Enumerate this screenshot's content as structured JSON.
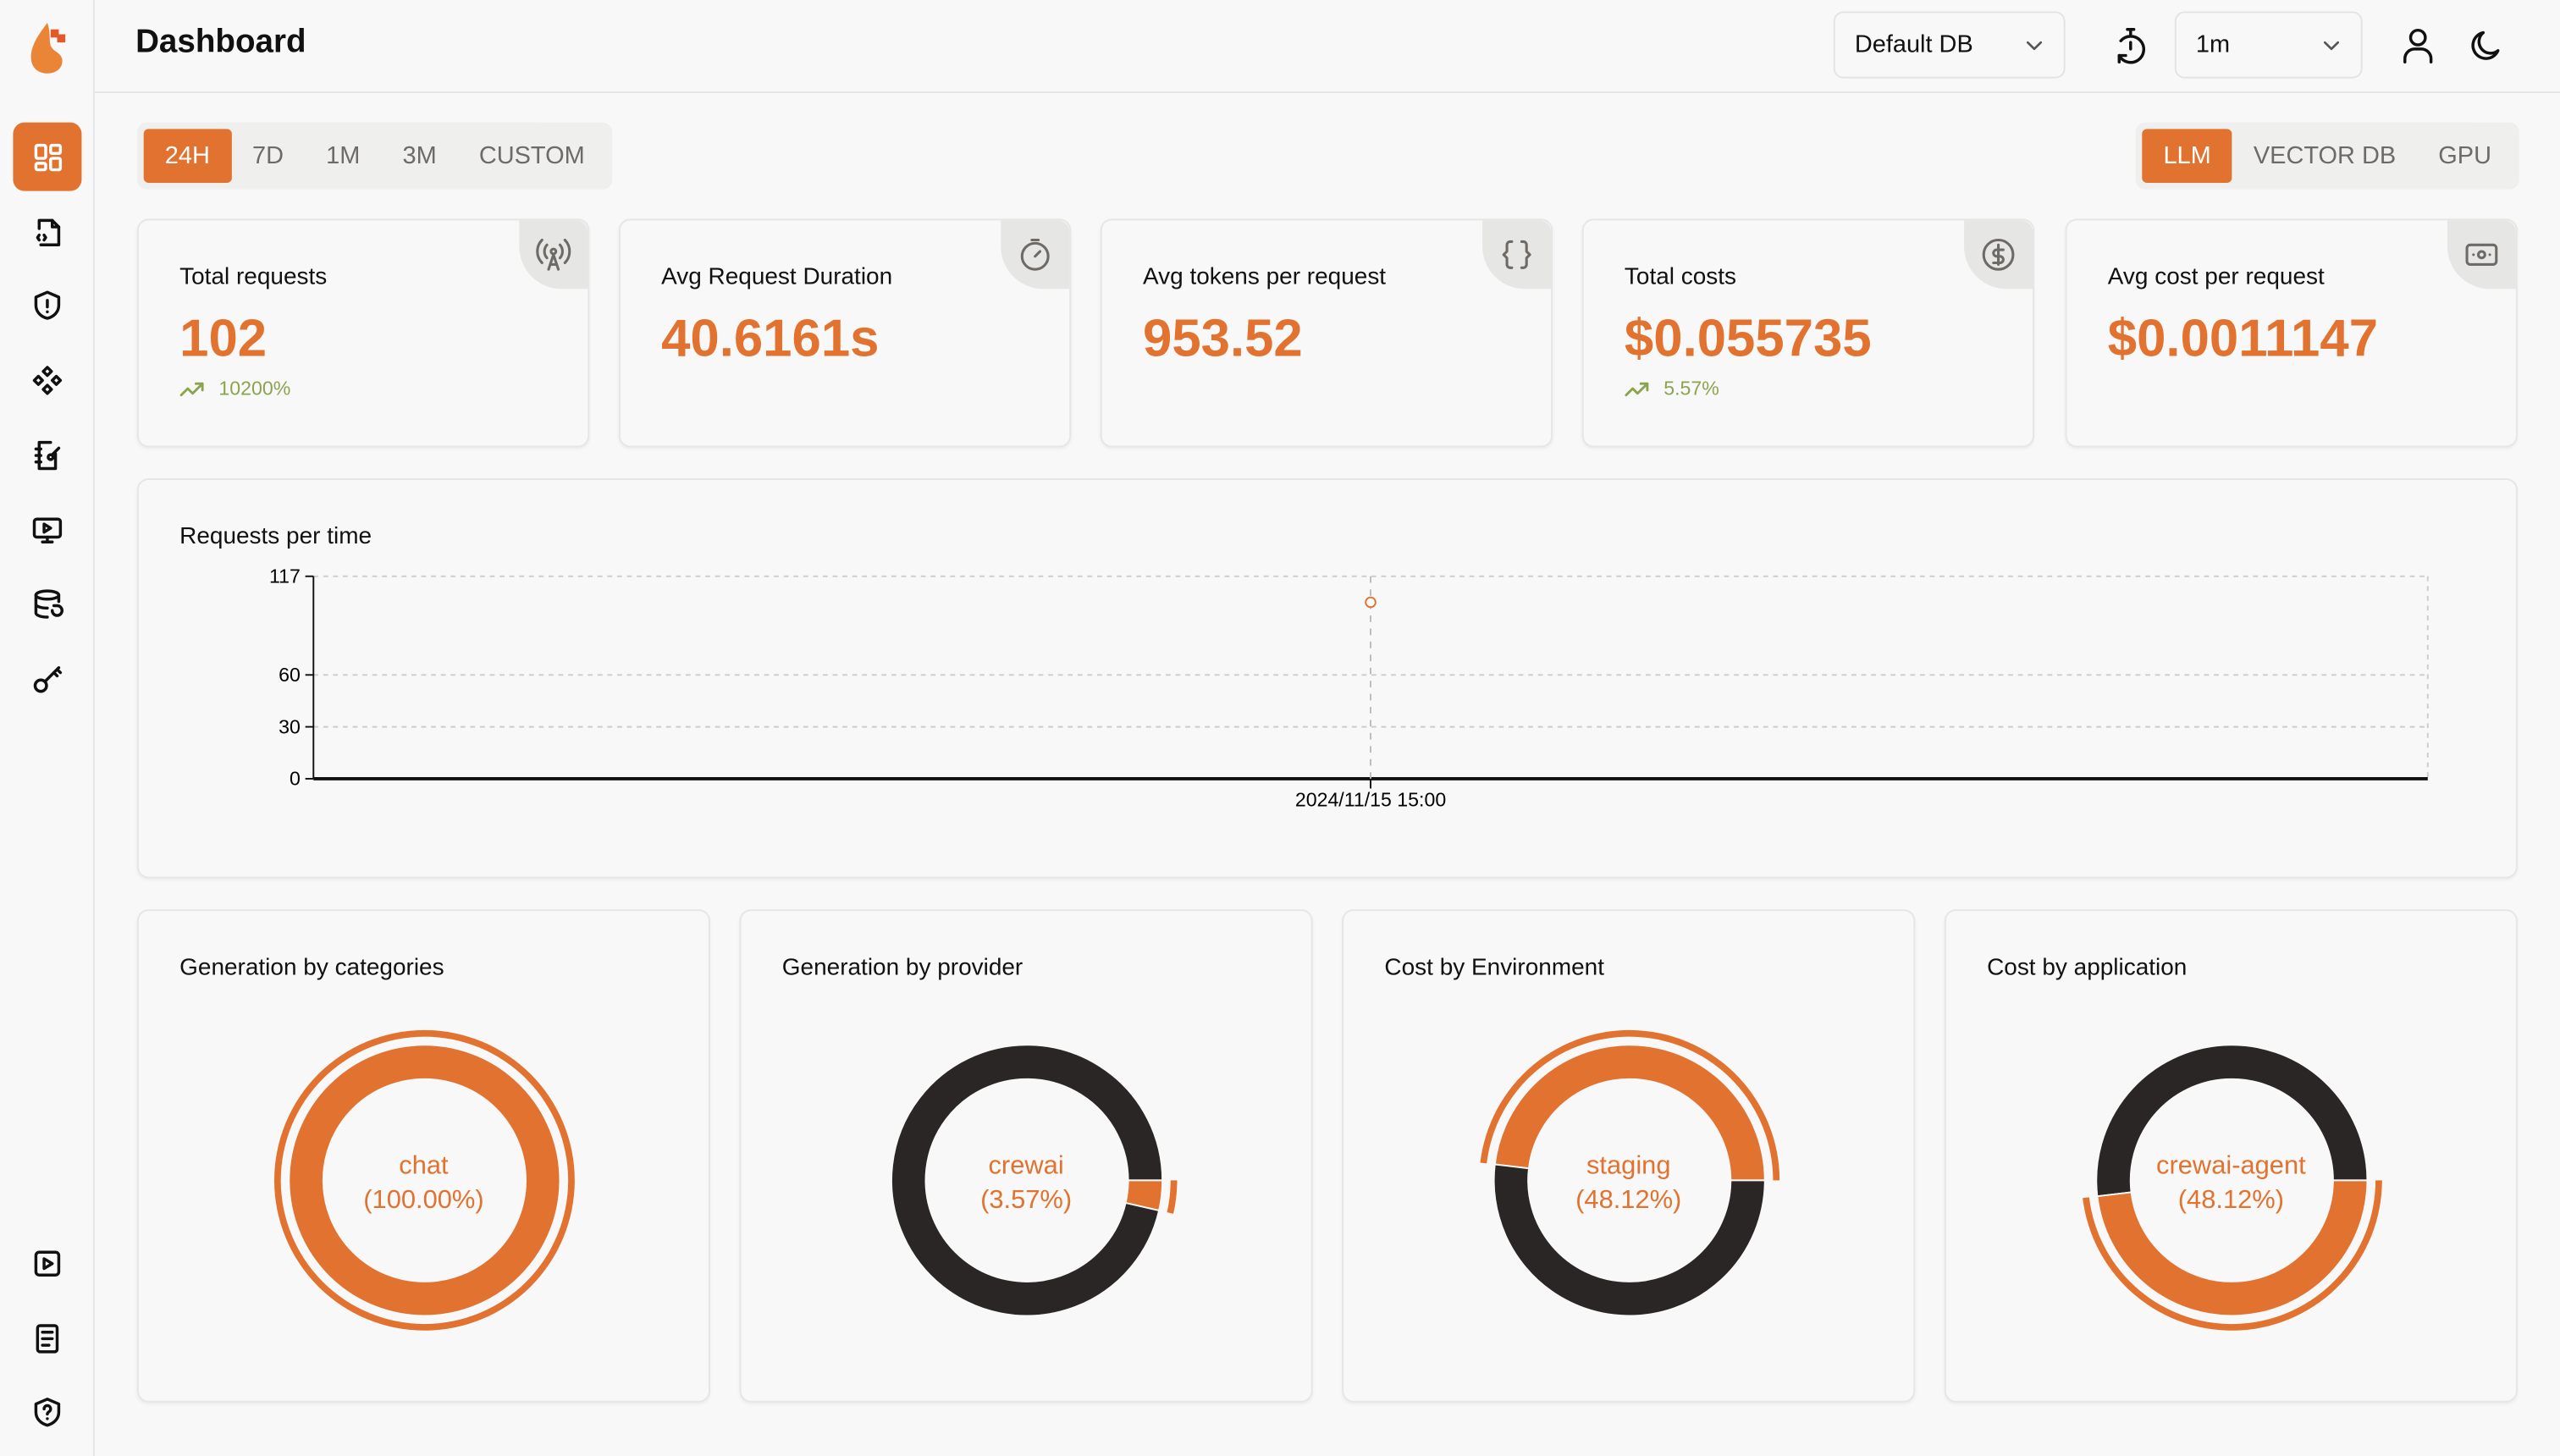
{
  "header": {
    "title": "Dashboard",
    "db_select": "Default DB",
    "refresh_interval": "1m"
  },
  "colors": {
    "accent": "#e2722f",
    "dark": "#2a2626",
    "trend": "#8aa44e"
  },
  "sidebar": {
    "items": [
      {
        "name": "dashboard",
        "icon": "grid-icon",
        "active": true
      },
      {
        "name": "requests",
        "icon": "file-code-icon"
      },
      {
        "name": "exceptions",
        "icon": "shield-alert-icon"
      },
      {
        "name": "prompt-hub",
        "icon": "components-icon"
      },
      {
        "name": "vault",
        "icon": "notebook-key-icon"
      },
      {
        "name": "openground",
        "icon": "monitor-play-icon"
      },
      {
        "name": "database-config",
        "icon": "database-icon"
      },
      {
        "name": "api-keys",
        "icon": "key-icon"
      }
    ],
    "bottom_items": [
      {
        "name": "video",
        "icon": "play-square-icon"
      },
      {
        "name": "docs",
        "icon": "book-icon"
      },
      {
        "name": "help",
        "icon": "shield-question-icon"
      }
    ]
  },
  "time_filter": {
    "options": [
      "24H",
      "7D",
      "1M",
      "3M",
      "CUSTOM"
    ],
    "selected": "24H"
  },
  "type_filter": {
    "options": [
      "LLM",
      "VECTOR DB",
      "GPU"
    ],
    "selected": "LLM"
  },
  "stats": [
    {
      "label": "Total requests",
      "value": "102",
      "trend": "10200%",
      "icon": "antenna-icon"
    },
    {
      "label": "Avg Request Duration",
      "value": "40.6161s",
      "icon": "timer-icon"
    },
    {
      "label": "Avg tokens per request",
      "value": "953.52",
      "icon": "braces-icon"
    },
    {
      "label": "Total costs",
      "value": "$0.055735",
      "trend": "5.57%",
      "icon": "dollar-circle-icon"
    },
    {
      "label": "Avg cost per request",
      "value": "$0.0011147",
      "icon": "banknote-icon"
    }
  ],
  "chart_data": [
    {
      "type": "line",
      "title": "Requests per time",
      "x": [
        "2024/11/15 15:00"
      ],
      "values": [
        102
      ],
      "yticks": [
        0,
        30,
        60,
        117
      ],
      "ylim": [
        0,
        117
      ],
      "grid": true
    },
    {
      "type": "pie",
      "title": "Generation by categories",
      "slices": [
        {
          "label": "chat",
          "value": 100
        }
      ],
      "active_label": "chat",
      "active_pct": "(100.00%)"
    },
    {
      "type": "pie",
      "title": "Generation by provider",
      "slices": [
        {
          "value": 96.43
        },
        {
          "label": "crewai",
          "value": 3.57
        }
      ],
      "active_label": "crewai",
      "active_pct": "(3.57%)"
    },
    {
      "type": "pie",
      "title": "Cost by Environment",
      "slices": [
        {
          "label": "staging",
          "value": 48.12
        },
        {
          "value": 51.88
        }
      ],
      "active_label": "staging",
      "active_pct": "(48.12%)"
    },
    {
      "type": "pie",
      "title": "Cost by application",
      "slices": [
        {
          "value": 51.88
        },
        {
          "label": "crewai-agent",
          "value": 48.12
        }
      ],
      "active_label": "crewai-agent",
      "active_pct": "(48.12%)"
    }
  ]
}
